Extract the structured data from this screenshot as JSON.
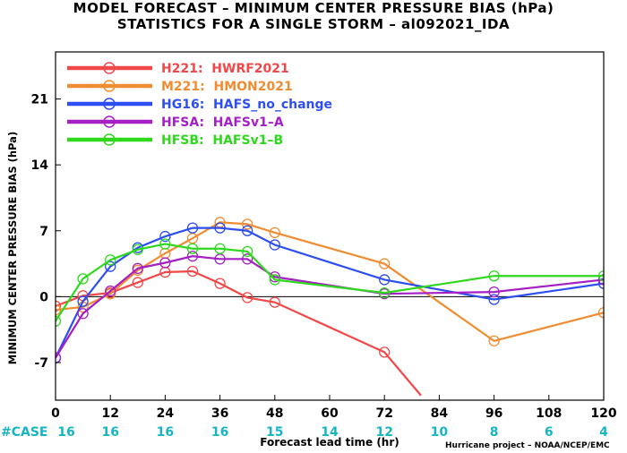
{
  "header": {
    "title_line1": "MODEL FORECAST – MINIMUM CENTER PRESSURE BIAS (hPa)",
    "title_line2": "STATISTICS FOR A SINGLE STORM – al092021_IDA"
  },
  "footer": {
    "case_label": "#CASE",
    "credit": "Hurricane project – NOAA/NCEP/EMC"
  },
  "chart_data": {
    "type": "line",
    "title": "MODEL FORECAST – MINIMUM CENTER PRESSURE BIAS (hPa)",
    "subtitle": "STATISTICS FOR A SINGLE STORM – al092021_IDA",
    "xlabel": "Forecast lead time (hr)",
    "ylabel": "MINIMUM CENTER PRESSURE BIAS (hPa)",
    "xlim": [
      0,
      120
    ],
    "ylim": [
      -11,
      26
    ],
    "xticks": [
      0,
      12,
      24,
      36,
      48,
      60,
      72,
      84,
      96,
      108,
      120
    ],
    "yticks": [
      -7,
      0,
      7,
      14,
      21
    ],
    "zero_line": true,
    "grid": false,
    "legend_position": "top-left",
    "case_counts": {
      "x": [
        0,
        12,
        24,
        36,
        48,
        60,
        72,
        84,
        96,
        108,
        120
      ],
      "values": [
        "16",
        "16",
        "16",
        "16",
        "15",
        "14",
        "12",
        "10",
        "8",
        "6",
        "4"
      ],
      "color": "#16b5c4"
    },
    "series": [
      {
        "name": "H221:  HWRF2021",
        "color": "#f04848",
        "x": [
          0,
          6,
          12,
          18,
          24,
          30,
          36,
          42,
          48,
          72,
          80
        ],
        "y": [
          -1.0,
          0.1,
          0.4,
          1.5,
          2.6,
          2.7,
          1.4,
          -0.1,
          -0.6,
          -5.9,
          -10.5
        ],
        "markers": [
          true,
          true,
          true,
          true,
          true,
          true,
          true,
          true,
          true,
          true,
          false
        ]
      },
      {
        "name": "M221:  HMON2021",
        "color": "#f08c32",
        "x": [
          0,
          6,
          12,
          18,
          24,
          30,
          36,
          42,
          48,
          72,
          96,
          120
        ],
        "y": [
          -1.4,
          -1.1,
          0.3,
          2.8,
          4.6,
          6.2,
          7.9,
          7.7,
          6.8,
          3.5,
          -4.7,
          -1.7
        ],
        "markers": [
          true,
          true,
          true,
          true,
          true,
          true,
          true,
          true,
          true,
          true,
          true,
          true
        ]
      },
      {
        "name": "HG16:  HAFS_no_change",
        "color": "#2d4ef0",
        "x": [
          0,
          6,
          12,
          18,
          24,
          30,
          36,
          42,
          48,
          72,
          96,
          120
        ],
        "y": [
          -6.5,
          -0.5,
          3.2,
          5.2,
          6.4,
          7.3,
          7.3,
          7.0,
          5.5,
          1.8,
          -0.3,
          1.4
        ],
        "markers": [
          true,
          true,
          true,
          true,
          true,
          true,
          true,
          true,
          true,
          true,
          true,
          true
        ]
      },
      {
        "name": "HFSA:  HAFSv1–A",
        "color": "#a51fc4",
        "x": [
          0,
          6,
          12,
          18,
          24,
          30,
          36,
          42,
          48,
          72,
          96,
          120
        ],
        "y": [
          -6.5,
          -1.8,
          0.6,
          3.0,
          3.6,
          4.3,
          4.0,
          4.0,
          2.1,
          0.3,
          0.5,
          1.8
        ],
        "markers": [
          true,
          true,
          true,
          true,
          true,
          true,
          true,
          true,
          true,
          true,
          true,
          true
        ]
      },
      {
        "name": "HFSB:  HAFSv1–B",
        "color": "#2ed81c",
        "x": [
          0,
          6,
          12,
          18,
          24,
          30,
          36,
          42,
          48,
          72,
          96,
          120
        ],
        "y": [
          -2.6,
          1.9,
          3.9,
          5.0,
          5.6,
          5.1,
          5.1,
          4.8,
          1.8,
          0.4,
          2.2,
          2.2
        ],
        "markers": [
          true,
          true,
          true,
          true,
          true,
          true,
          true,
          true,
          true,
          true,
          true,
          true
        ]
      }
    ]
  }
}
